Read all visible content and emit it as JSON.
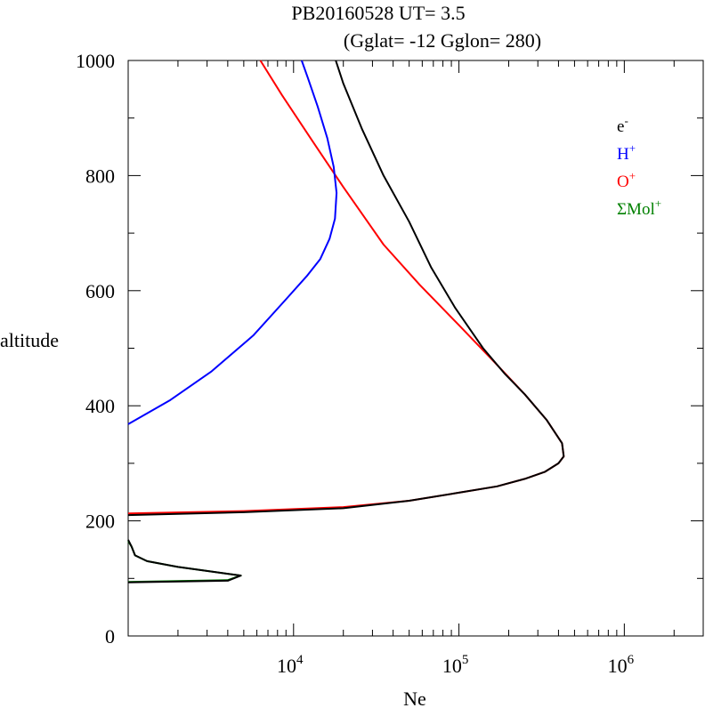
{
  "title": {
    "line1": "PB20160528   UT=  3.5",
    "line2": "(Gglat= -12   Gglon=  280)"
  },
  "chart_data": {
    "type": "line",
    "xlabel": "Ne",
    "ylabel": "altitude",
    "xscale": "log",
    "xlim": [
      1000,
      3000000
    ],
    "ylim": [
      0,
      1000
    ],
    "x_ticks": [
      {
        "value": 10000,
        "base": "10",
        "exp": "4"
      },
      {
        "value": 100000,
        "base": "10",
        "exp": "5"
      },
      {
        "value": 1000000,
        "base": "10",
        "exp": "6"
      }
    ],
    "y_ticks": [
      {
        "value": 0,
        "label": "0"
      },
      {
        "value": 200,
        "label": "200"
      },
      {
        "value": 400,
        "label": "400"
      },
      {
        "value": 600,
        "label": "600"
      },
      {
        "value": 800,
        "label": "800"
      },
      {
        "value": 1000,
        "label": "1000"
      }
    ],
    "grid": false,
    "legend_position": "top-right",
    "legend": [
      {
        "base": "e",
        "sup": "-",
        "color": "#000000"
      },
      {
        "base": "H",
        "sup": "+",
        "color": "#0000ff"
      },
      {
        "base": "O",
        "sup": "+",
        "color": "#ff0000"
      },
      {
        "base": "ΣMol",
        "sup": "+",
        "color": "#008000"
      }
    ],
    "series": [
      {
        "key": "O+",
        "color": "#ff0000",
        "points": [
          [
            1000,
            213
          ],
          [
            5000,
            217
          ],
          [
            20000,
            224
          ],
          [
            50000,
            235
          ],
          [
            100000,
            249
          ],
          [
            170000,
            260
          ],
          [
            250000,
            273
          ],
          [
            330000,
            285
          ],
          [
            400000,
            300
          ],
          [
            430000,
            312
          ],
          [
            420000,
            335
          ],
          [
            340000,
            375
          ],
          [
            250000,
            420
          ],
          [
            165000,
            475
          ],
          [
            100000,
            540
          ],
          [
            58000,
            610
          ],
          [
            35000,
            680
          ],
          [
            20000,
            780
          ],
          [
            13000,
            860
          ],
          [
            8500,
            940
          ],
          [
            6300,
            1000
          ]
        ]
      },
      {
        "key": "H+",
        "color": "#0000ff",
        "points": [
          [
            1000,
            368
          ],
          [
            1800,
            410
          ],
          [
            3200,
            460
          ],
          [
            5700,
            522
          ],
          [
            9000,
            585
          ],
          [
            12000,
            625
          ],
          [
            14500,
            655
          ],
          [
            16500,
            690
          ],
          [
            17800,
            725
          ],
          [
            18200,
            770
          ],
          [
            17500,
            815
          ],
          [
            16000,
            865
          ],
          [
            14000,
            920
          ],
          [
            12200,
            970
          ],
          [
            11200,
            1000
          ]
        ]
      },
      {
        "key": "ΣMol+",
        "color": "#008000",
        "points": [
          [
            1000,
            94
          ],
          [
            4000,
            97
          ],
          [
            4800,
            105
          ],
          [
            2000,
            120
          ],
          [
            1300,
            130
          ],
          [
            1100,
            140
          ],
          [
            1050,
            155
          ],
          [
            1000,
            165
          ]
        ]
      },
      {
        "key": "e-",
        "color": "#000000",
        "points": [
          [
            1000,
            210
          ],
          [
            5000,
            215
          ],
          [
            20000,
            222
          ],
          [
            50000,
            235
          ],
          [
            100000,
            249
          ],
          [
            170000,
            260
          ],
          [
            250000,
            273
          ],
          [
            330000,
            285
          ],
          [
            400000,
            300
          ],
          [
            430000,
            312
          ],
          [
            420000,
            335
          ],
          [
            340000,
            375
          ],
          [
            250000,
            420
          ],
          [
            190000,
            455
          ],
          [
            140000,
            500
          ],
          [
            95000,
            570
          ],
          [
            68000,
            640
          ],
          [
            50000,
            720
          ],
          [
            35000,
            800
          ],
          [
            26000,
            880
          ],
          [
            20000,
            960
          ],
          [
            18000,
            1000
          ]
        ]
      },
      {
        "key": "e-low",
        "color": "#000000",
        "points": [
          [
            1000,
            93
          ],
          [
            4000,
            96
          ],
          [
            4800,
            105
          ],
          [
            2000,
            120
          ],
          [
            1300,
            130
          ],
          [
            1100,
            140
          ],
          [
            1050,
            155
          ],
          [
            1000,
            167
          ]
        ]
      }
    ]
  }
}
